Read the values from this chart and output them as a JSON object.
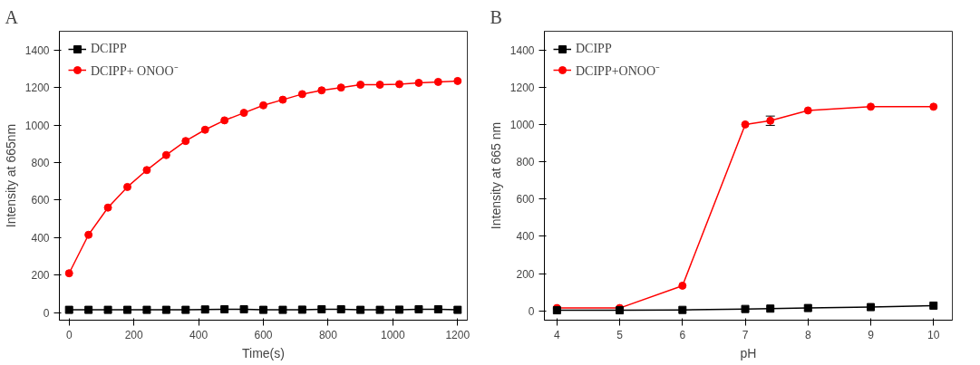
{
  "chart_data": [
    {
      "type": "line",
      "title": "A",
      "xlabel": "Time(s)",
      "ylabel": "Intensity at 665nm",
      "x": [
        0,
        60,
        120,
        180,
        240,
        300,
        360,
        420,
        480,
        540,
        600,
        660,
        720,
        780,
        840,
        900,
        960,
        1020,
        1080,
        1140,
        1200
      ],
      "series": [
        {
          "name": "DCIPP",
          "color": "#000000",
          "marker": "square",
          "values": [
            15,
            15,
            15,
            15,
            15,
            15,
            15,
            17,
            18,
            18,
            15,
            15,
            16,
            18,
            18,
            15,
            15,
            16,
            18,
            18,
            15
          ]
        },
        {
          "name": "DCIPP+ ONOO⁻",
          "color": "#ff0000",
          "marker": "circle",
          "values": [
            210,
            415,
            560,
            670,
            760,
            840,
            915,
            975,
            1025,
            1065,
            1105,
            1135,
            1165,
            1185,
            1200,
            1215,
            1215,
            1218,
            1225,
            1230,
            1235
          ]
        }
      ],
      "xlim": [
        -30,
        1230
      ],
      "ylim": [
        -40,
        1500
      ],
      "xticks": [
        0,
        200,
        400,
        600,
        800,
        1000,
        1200
      ],
      "yticks": [
        0,
        200,
        400,
        600,
        800,
        1000,
        1200,
        1400
      ],
      "legend": "top left",
      "grid": false,
      "line_style": "solid"
    },
    {
      "type": "line",
      "title": "B",
      "xlabel": "pH",
      "ylabel": "Intensity at 665 nm",
      "x": [
        4,
        5,
        6,
        7,
        7.4,
        8,
        9,
        10
      ],
      "series": [
        {
          "name": "DCIPP",
          "color": "#000000",
          "marker": "square",
          "values": [
            3,
            3,
            5,
            10,
            12,
            15,
            20,
            28
          ]
        },
        {
          "name": "DCIPP+ONOO⁻",
          "color": "#ff0000",
          "marker": "circle",
          "values": [
            15,
            15,
            135,
            1000,
            1020,
            1075,
            1095,
            1095
          ],
          "errors": [
            null,
            null,
            null,
            null,
            25,
            null,
            null,
            null
          ]
        }
      ],
      "xlim": [
        3.8,
        10.3
      ],
      "ylim": [
        -50,
        1500
      ],
      "xticks": [
        4,
        5,
        6,
        7,
        8,
        9,
        10
      ],
      "yticks": [
        0,
        200,
        400,
        600,
        800,
        1000,
        1200,
        1400
      ],
      "legend": "top left",
      "grid": false,
      "line_style": "solid"
    }
  ]
}
